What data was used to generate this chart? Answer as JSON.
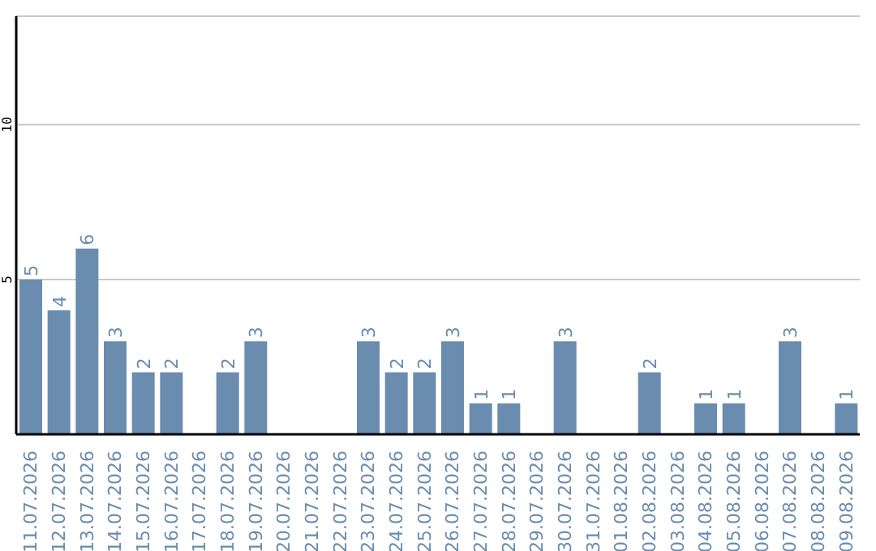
{
  "chart_data": {
    "type": "bar",
    "categories": [
      "11.07.2026",
      "12.07.2026",
      "13.07.2026",
      "14.07.2026",
      "15.07.2026",
      "16.07.2026",
      "17.07.2026",
      "18.07.2026",
      "19.07.2026",
      "20.07.2026",
      "21.07.2026",
      "22.07.2026",
      "23.07.2026",
      "24.07.2026",
      "25.07.2026",
      "26.07.2026",
      "27.07.2026",
      "28.07.2026",
      "29.07.2026",
      "30.07.2026",
      "31.07.2026",
      "01.08.2026",
      "02.08.2026",
      "03.08.2026",
      "04.08.2026",
      "05.08.2026",
      "06.08.2026",
      "07.08.2026",
      "08.08.2026",
      "09.08.2026"
    ],
    "values": [
      5,
      4,
      6,
      3,
      2,
      2,
      0,
      2,
      3,
      0,
      0,
      0,
      3,
      2,
      2,
      3,
      1,
      1,
      0,
      3,
      0,
      0,
      2,
      0,
      1,
      1,
      0,
      3,
      0,
      1
    ],
    "value_labels": [
      "5",
      "4",
      "6",
      "3",
      "2",
      "2",
      null,
      "2",
      "3",
      null,
      null,
      null,
      "3",
      "2",
      "2",
      "3",
      "1",
      "1",
      null,
      "3",
      null,
      null,
      "2",
      null,
      "1",
      "1",
      null,
      "3",
      null,
      "1"
    ],
    "color": "#6a8caf",
    "ylim": [
      0,
      13.5
    ],
    "yticks": [
      5,
      10
    ],
    "grid": "y"
  }
}
